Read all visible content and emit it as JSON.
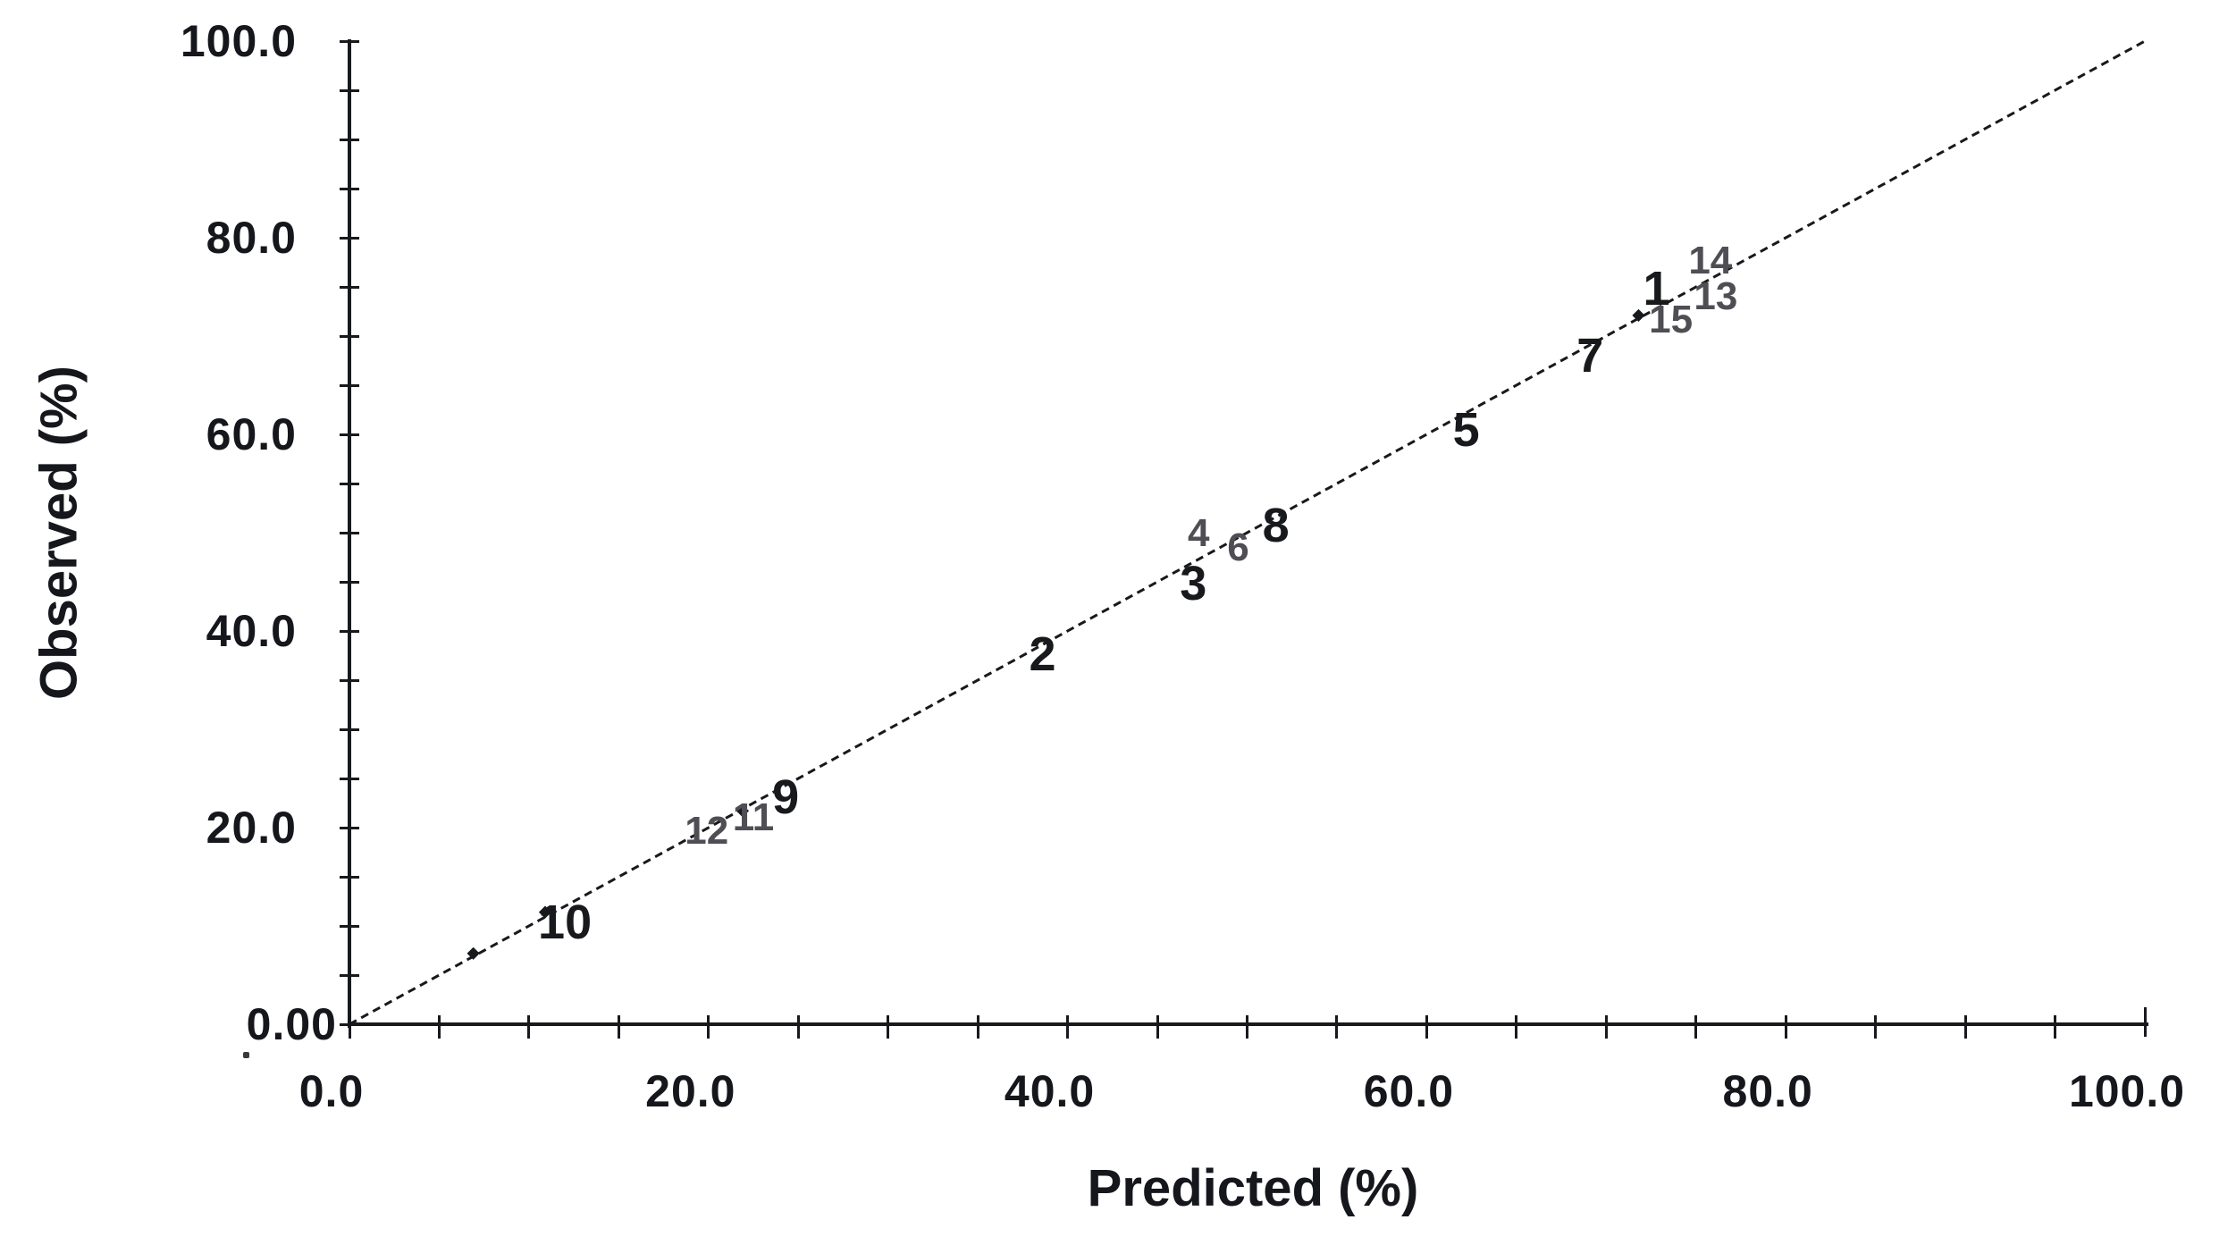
{
  "chart_data": {
    "type": "scatter",
    "title": "",
    "xlabel": "Predicted (%)",
    "ylabel": "Observed (%)",
    "xlim": [
      0,
      100
    ],
    "ylim": [
      0,
      100
    ],
    "grid": false,
    "legend": "none",
    "minor_tick_step": 5,
    "x_tick_labels": [
      {
        "value": 0,
        "label": "0.0"
      },
      {
        "value": 20,
        "label": "20.0"
      },
      {
        "value": 40,
        "label": "40.0"
      },
      {
        "value": 60,
        "label": "60.0"
      },
      {
        "value": 80,
        "label": "80.0"
      },
      {
        "value": 100,
        "label": "100.0"
      }
    ],
    "y_tick_labels": [
      {
        "value": 0,
        "label": "0.00",
        "dx": 45
      },
      {
        "value": 20,
        "label": "20.0",
        "dx": 0
      },
      {
        "value": 40,
        "label": "40.0",
        "dx": 0
      },
      {
        "value": 60,
        "label": "60.0",
        "dx": 0
      },
      {
        "value": 80,
        "label": "80.0",
        "dx": 0
      },
      {
        "value": 100,
        "label": "100.0",
        "dx": 0
      }
    ],
    "identity_line": {
      "from": [
        0,
        0
      ],
      "to": [
        100,
        100
      ],
      "style": "dashed"
    },
    "points": [
      {
        "id": "1",
        "predicted": 72.8,
        "observed": 74.8,
        "emphasis": "strong"
      },
      {
        "id": "2",
        "predicted": 38.6,
        "observed": 37.6,
        "emphasis": "strong"
      },
      {
        "id": "3",
        "predicted": 47.0,
        "observed": 44.8,
        "emphasis": "strong"
      },
      {
        "id": "4",
        "predicted": 47.3,
        "observed": 49.9,
        "emphasis": "light"
      },
      {
        "id": "5",
        "predicted": 62.2,
        "observed": 60.5,
        "emphasis": "strong"
      },
      {
        "id": "6",
        "predicted": 49.5,
        "observed": 48.5,
        "emphasis": "light"
      },
      {
        "id": "7",
        "predicted": 69.1,
        "observed": 68.0,
        "emphasis": "strong"
      },
      {
        "id": "8",
        "predicted": 51.6,
        "observed": 50.7,
        "emphasis": "strong"
      },
      {
        "id": "9",
        "predicted": 24.3,
        "observed": 23.1,
        "emphasis": "strong"
      },
      {
        "id": "10",
        "predicted": 12.0,
        "observed": 10.4,
        "emphasis": "strong"
      },
      {
        "id": "11",
        "predicted": 22.5,
        "observed": 21.0,
        "emphasis": "light"
      },
      {
        "id": "12",
        "predicted": 19.9,
        "observed": 19.6,
        "emphasis": "light"
      },
      {
        "id": "13",
        "predicted": 76.1,
        "observed": 74.0,
        "emphasis": "light"
      },
      {
        "id": "14",
        "predicted": 75.8,
        "observed": 77.6,
        "emphasis": "light"
      },
      {
        "id": "15",
        "predicted": 73.6,
        "observed": 71.6,
        "emphasis": "light"
      }
    ],
    "point_markers": [
      [
        6.9,
        7.2
      ],
      [
        10.9,
        11.4
      ],
      [
        21.9,
        21.7
      ],
      [
        71.8,
        72.1
      ]
    ]
  },
  "colors": {
    "background": "#ffffff",
    "axis": "#17191d",
    "tick_label": "#15171c",
    "point_strong": "#17191c",
    "point_light": "#4e4e54",
    "identity_line": "#17191d"
  }
}
